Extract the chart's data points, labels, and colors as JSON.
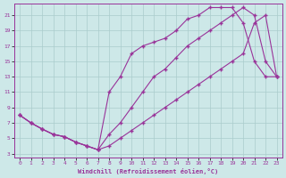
{
  "xlabel": "Windchill (Refroidissement éolien,°C)",
  "bg_color": "#cde8e8",
  "grid_color": "#aacccc",
  "line_color": "#993399",
  "xlim": [
    -0.5,
    23.5
  ],
  "ylim": [
    2.5,
    22.5
  ],
  "xticks": [
    0,
    1,
    2,
    3,
    4,
    5,
    6,
    7,
    8,
    9,
    10,
    11,
    12,
    13,
    14,
    15,
    16,
    17,
    18,
    19,
    20,
    21,
    22,
    23
  ],
  "yticks": [
    3,
    5,
    7,
    9,
    11,
    13,
    15,
    17,
    19,
    21
  ],
  "line1_x": [
    0,
    1,
    2,
    3,
    4,
    5,
    6,
    7,
    8,
    9,
    10,
    11,
    12,
    13,
    14,
    15,
    16,
    17,
    18,
    19,
    20,
    21,
    22,
    23
  ],
  "line1_y": [
    8,
    7,
    6.2,
    5.5,
    5.2,
    4.5,
    4.0,
    3.5,
    11,
    13,
    16,
    17,
    17.5,
    18,
    19,
    20.5,
    21,
    22,
    22,
    22,
    20,
    15,
    13,
    13
  ],
  "line2_x": [
    0,
    1,
    2,
    3,
    4,
    5,
    6,
    7,
    8,
    9,
    10,
    11,
    12,
    13,
    14,
    15,
    16,
    17,
    18,
    19,
    20,
    21,
    22,
    23
  ],
  "line2_y": [
    8,
    7,
    6.2,
    5.5,
    5.2,
    4.5,
    4.0,
    3.5,
    4,
    5,
    6,
    7,
    8,
    9,
    10,
    11,
    12,
    13,
    14,
    15,
    16,
    20,
    21,
    13
  ],
  "line3_x": [
    0,
    1,
    2,
    3,
    4,
    5,
    6,
    7,
    8,
    9,
    10,
    11,
    12,
    13,
    14,
    15,
    16,
    17,
    18,
    19,
    20,
    21,
    22,
    23
  ],
  "line3_y": [
    8,
    7,
    6.2,
    5.5,
    5.2,
    4.5,
    4.0,
    3.5,
    5.5,
    7,
    9,
    11,
    13,
    14,
    15.5,
    17,
    18,
    19,
    20,
    21,
    22,
    21,
    15,
    13
  ]
}
